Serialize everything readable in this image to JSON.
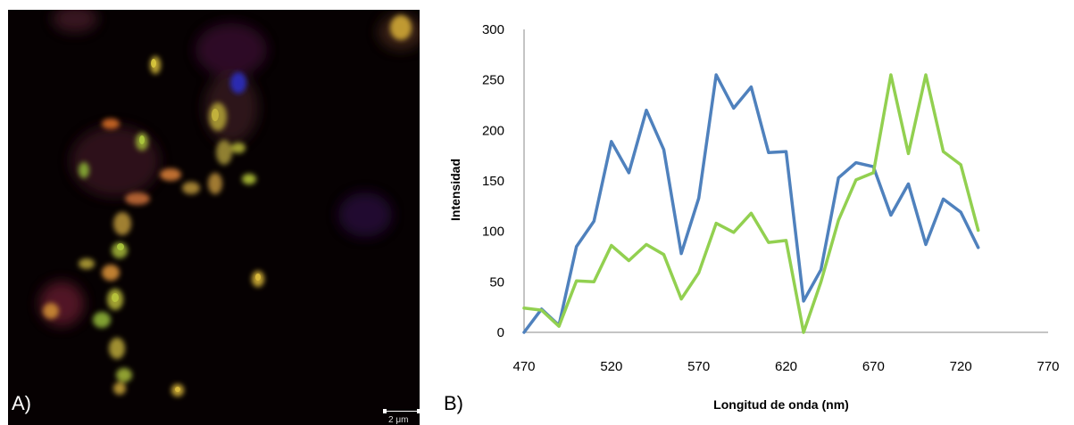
{
  "panels": {
    "a_label": "A)",
    "b_label": "B)",
    "scale_label": "2 μm"
  },
  "colors": {
    "blue_series": "#4f81bd",
    "green_series": "#92d050",
    "micrograph_background": "#060102"
  },
  "chart_data": {
    "type": "line",
    "xlabel": "Longitud de onda (nm)",
    "ylabel": "Intensidad",
    "xlim": [
      470,
      770
    ],
    "ylim": [
      0,
      300
    ],
    "xticks": [
      470,
      520,
      570,
      620,
      670,
      720,
      770
    ],
    "yticks": [
      0,
      50,
      100,
      150,
      200,
      250,
      300
    ],
    "grid": false,
    "x": [
      470,
      480,
      490,
      500,
      510,
      520,
      530,
      540,
      550,
      560,
      570,
      580,
      590,
      600,
      610,
      620,
      630,
      640,
      650,
      660,
      670,
      680,
      690,
      700,
      710,
      720,
      730
    ],
    "series": [
      {
        "color": "#4f81bd",
        "values": [
          0,
          23,
          7,
          85,
          110,
          189,
          158,
          220,
          181,
          78,
          133,
          255,
          222,
          243,
          178,
          179,
          31,
          62,
          153,
          168,
          164,
          116,
          147,
          87,
          132,
          119,
          84
        ]
      },
      {
        "color": "#92d050",
        "values": [
          24,
          22,
          6,
          51,
          50,
          86,
          71,
          87,
          77,
          33,
          59,
          108,
          99,
          118,
          89,
          91,
          0,
          50,
          111,
          151,
          158,
          255,
          177,
          255,
          179,
          166,
          101
        ]
      }
    ]
  }
}
